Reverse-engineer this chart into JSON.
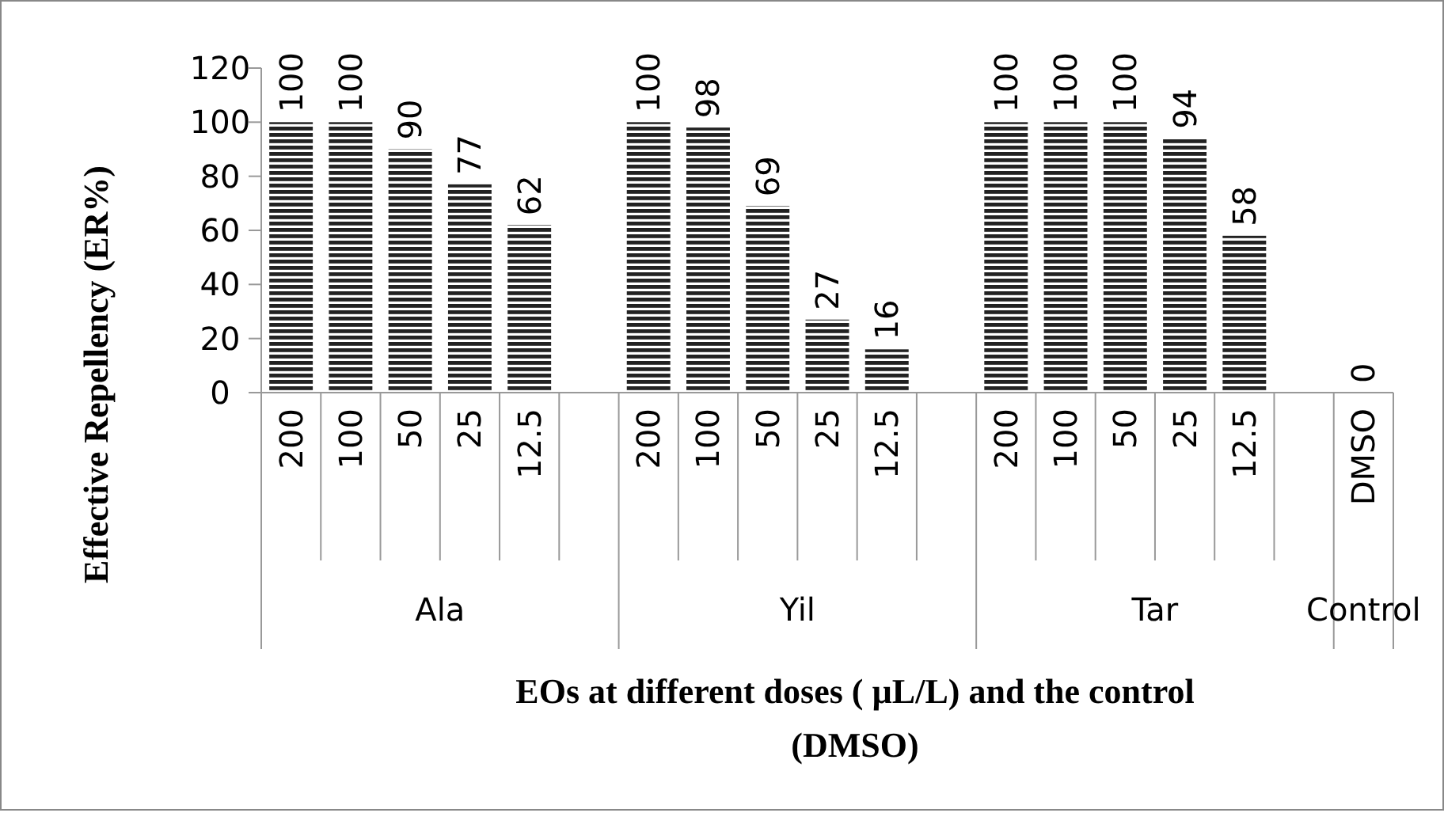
{
  "chart_data": {
    "type": "bar",
    "ylabel": "Effective Repellency (ER%)",
    "xlabel": "EOs at different doses ( µL/L) and the control (DMSO)",
    "categories": [
      "200",
      "100",
      "50",
      "25",
      "12.5",
      null,
      "200",
      "100",
      "50",
      "25",
      "12.5",
      null,
      "200",
      "100",
      "50",
      "25",
      "12.5",
      null,
      "DMSO"
    ],
    "values": [
      100,
      100,
      90,
      77,
      62,
      null,
      100,
      98,
      69,
      27,
      16,
      null,
      100,
      100,
      100,
      94,
      58,
      null,
      0
    ],
    "color": "#222222",
    "ylim": [
      0,
      120
    ],
    "yticks": [
      0,
      20,
      40,
      60,
      80,
      100,
      120
    ],
    "data_labels": true,
    "annotations": [
      "Ala",
      "Yil",
      "Tar",
      "Control"
    ]
  }
}
